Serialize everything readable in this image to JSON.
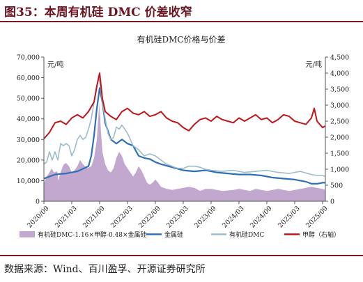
{
  "figure": {
    "title": "图35：本周有机硅 DMC 价差收窄",
    "source": "数据来源：Wind、百川盈孚、开源证券研究所"
  },
  "colors": {
    "accent": "#7a1a25",
    "spread_fill": "#c2a8cf",
    "silicon_metal": "#2e6fb7",
    "dmc": "#9dbccb",
    "methanol": "#c0141b"
  },
  "chart_data": {
    "type": "area+line",
    "title": "有机硅DMC价格与价差",
    "left_unit": "元/吨",
    "right_unit": "元/吨",
    "left_axis": {
      "ylim": [
        0,
        70000
      ],
      "ticks": [
        "0",
        "10,000",
        "20,000",
        "30,000",
        "40,000",
        "50,000",
        "60,000",
        "70,000"
      ]
    },
    "right_axis": {
      "ylim": [
        0,
        4500
      ],
      "ticks": [
        "0",
        "500",
        "1,000",
        "1,500",
        "2,000",
        "2,500",
        "3,000",
        "3,500",
        "4,000",
        "4,500"
      ]
    },
    "x_ticks": [
      "2020/09",
      "2021/03",
      "2021/09",
      "2022/03",
      "2022/09",
      "2023/03",
      "2023/09",
      "2024/03",
      "2024/09",
      "2025/03",
      "2025/09"
    ],
    "grid": false,
    "legend_position": "bottom",
    "series": [
      {
        "name": "有机硅DMC-1.16×甲醇-0.48×金属硅",
        "type": "area",
        "axis": "left",
        "x": [
          0,
          0.05,
          0.1,
          0.14,
          0.18,
          0.24,
          0.26,
          0.3,
          0.34,
          0.36,
          0.4,
          0.45,
          0.5,
          0.55,
          0.6,
          0.65,
          0.7,
          0.78,
          0.85,
          0.9,
          0.95,
          0.98,
          0.995,
          1.0,
          1.005,
          1.02,
          1.05,
          1.1,
          1.15,
          1.2,
          1.25,
          1.3,
          1.35,
          1.4,
          1.45,
          1.5,
          1.55,
          1.6,
          1.65,
          1.7,
          1.75,
          1.8,
          1.85,
          1.9,
          1.95,
          2.0,
          2.05,
          2.1,
          2.2,
          2.3,
          2.4,
          2.5,
          2.6,
          2.7,
          2.8,
          2.9,
          3.0,
          3.2,
          3.4,
          3.5,
          3.6,
          3.7,
          3.8,
          3.9,
          4.0,
          4.1,
          4.2,
          4.3,
          4.4,
          4.5,
          4.6,
          4.7,
          4.8,
          4.9,
          5.0,
          5.05
        ],
        "values": [
          9000,
          12000,
          14000,
          16000,
          14000,
          14500,
          10000,
          14000,
          17000,
          18000,
          18500,
          17000,
          14000,
          15000,
          17000,
          20000,
          18000,
          16000,
          17000,
          21000,
          30000,
          42000,
          48000,
          40000,
          45000,
          35000,
          24000,
          18000,
          15000,
          14000,
          16000,
          21000,
          24000,
          22000,
          18000,
          16000,
          14000,
          12000,
          14000,
          17000,
          15000,
          12000,
          9000,
          8000,
          9000,
          10500,
          9000,
          7000,
          6000,
          5500,
          6000,
          6500,
          7000,
          6500,
          5000,
          6000,
          6000,
          5000,
          5500,
          6000,
          5500,
          5000,
          6000,
          5500,
          5000,
          5500,
          6000,
          5500,
          5000,
          5500,
          6000,
          6500,
          7000,
          6500,
          6000,
          5500
        ]
      },
      {
        "name": "金属硅",
        "type": "line",
        "axis": "left",
        "x": [
          0,
          0.2,
          0.4,
          0.6,
          0.8,
          0.85,
          0.9,
          0.95,
          1.0,
          1.05,
          1.1,
          1.2,
          1.3,
          1.4,
          1.5,
          1.6,
          1.7,
          1.8,
          1.9,
          2.0,
          2.1,
          2.3,
          2.5,
          2.7,
          2.9,
          3.1,
          3.3,
          3.5,
          3.7,
          3.9,
          4.1,
          4.3,
          4.5,
          4.6,
          4.7,
          4.8,
          4.9,
          5.0,
          5.05
        ],
        "values": [
          11000,
          13000,
          13500,
          14500,
          17000,
          22000,
          32000,
          45000,
          55000,
          48000,
          38000,
          30000,
          28000,
          30000,
          28000,
          27000,
          22000,
          21000,
          20500,
          19000,
          18000,
          16500,
          15000,
          14500,
          15000,
          14000,
          13500,
          13000,
          13000,
          12500,
          11500,
          11000,
          10500,
          10000,
          9500,
          8500,
          8500,
          9000,
          9000
        ]
      },
      {
        "name": "有机硅DMC",
        "type": "line",
        "axis": "left",
        "x": [
          0,
          0.05,
          0.1,
          0.15,
          0.2,
          0.25,
          0.3,
          0.35,
          0.4,
          0.45,
          0.5,
          0.55,
          0.6,
          0.65,
          0.7,
          0.75,
          0.8,
          0.85,
          0.9,
          0.95,
          0.98,
          1.0,
          1.02,
          1.05,
          1.1,
          1.15,
          1.2,
          1.25,
          1.3,
          1.35,
          1.4,
          1.5,
          1.6,
          1.7,
          1.8,
          1.9,
          2.0,
          2.1,
          2.2,
          2.3,
          2.4,
          2.5,
          2.6,
          2.7,
          2.8,
          2.9,
          3.0,
          3.2,
          3.4,
          3.6,
          3.8,
          4.0,
          4.2,
          4.4,
          4.6,
          4.8,
          4.9,
          5.0,
          5.05
        ],
        "values": [
          18000,
          19000,
          24000,
          20000,
          24000,
          20000,
          28000,
          27000,
          28000,
          27000,
          22000,
          25000,
          30000,
          32000,
          30000,
          31000,
          35000,
          40000,
          48000,
          55000,
          60000,
          58000,
          55000,
          48000,
          40000,
          33000,
          30000,
          31000,
          36000,
          35000,
          37000,
          33000,
          27000,
          25000,
          22000,
          23000,
          22000,
          20000,
          18000,
          17000,
          16000,
          16000,
          17000,
          17000,
          16500,
          15500,
          15000,
          14500,
          15000,
          14000,
          14500,
          15000,
          14000,
          13500,
          14500,
          13000,
          12500,
          12500,
          12000
        ]
      },
      {
        "name": "甲醇（右轴）",
        "type": "line",
        "axis": "right",
        "x": [
          0,
          0.1,
          0.2,
          0.3,
          0.4,
          0.5,
          0.6,
          0.7,
          0.8,
          0.9,
          0.95,
          1.0,
          1.05,
          1.1,
          1.2,
          1.3,
          1.4,
          1.5,
          1.6,
          1.7,
          1.8,
          1.9,
          2.0,
          2.1,
          2.2,
          2.3,
          2.4,
          2.5,
          2.6,
          2.7,
          2.8,
          2.9,
          3.0,
          3.1,
          3.2,
          3.3,
          3.4,
          3.5,
          3.6,
          3.7,
          3.8,
          3.9,
          4.0,
          4.1,
          4.2,
          4.3,
          4.4,
          4.5,
          4.6,
          4.7,
          4.8,
          4.85,
          4.9,
          5.0,
          5.05
        ],
        "values": [
          1950,
          2150,
          2450,
          2500,
          2400,
          2600,
          2700,
          2600,
          2800,
          3100,
          3600,
          4000,
          3200,
          2800,
          2650,
          2550,
          2800,
          2900,
          2750,
          2700,
          2800,
          2650,
          2700,
          2800,
          2600,
          2500,
          2450,
          2300,
          2200,
          2400,
          2550,
          2600,
          2500,
          2650,
          2550,
          2500,
          2450,
          2600,
          2500,
          2600,
          2700,
          2550,
          2600,
          2450,
          2550,
          2700,
          2650,
          2500,
          2450,
          2400,
          2600,
          2900,
          2500,
          2300,
          2350
        ]
      }
    ]
  }
}
